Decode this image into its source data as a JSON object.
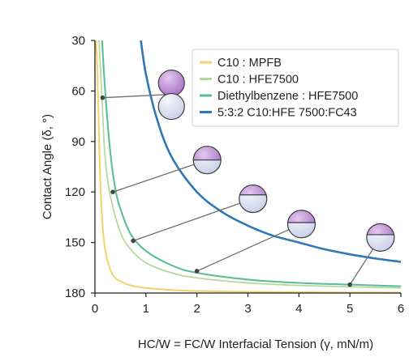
{
  "chart_data": {
    "type": "line",
    "xlabel": "HC/W = FC/W Interfacial Tension  (γ, mN/m)",
    "ylabel": "Contact Angle (δ, °)",
    "xlim": [
      0,
      6
    ],
    "ylim": [
      30,
      180
    ],
    "y_inverted": true,
    "x_ticks": [
      "0",
      "1",
      "2",
      "3",
      "4",
      "5",
      "6"
    ],
    "y_ticks": [
      "30",
      "60",
      "90",
      "120",
      "150",
      "180"
    ],
    "grid": false,
    "legend_position": "top-right",
    "series": [
      {
        "name": "C10 : MPFB",
        "color": "#f2d373",
        "x": [
          0.02,
          0.05,
          0.1,
          0.15,
          0.2,
          0.3,
          0.4,
          0.5,
          0.7,
          1.0,
          1.5,
          2.0,
          3.0,
          4.0,
          5.0,
          6.0
        ],
        "y": [
          30,
          50,
          110,
          140,
          154,
          166,
          171,
          173,
          175.5,
          177,
          178.2,
          178.8,
          179.3,
          179.5,
          179.7,
          179.8
        ]
      },
      {
        "name": "C10 : HFE7500",
        "color": "#b2d89c",
        "x": [
          0.08,
          0.15,
          0.2,
          0.3,
          0.5,
          0.7,
          1.0,
          1.5,
          2.0,
          3.0,
          4.0,
          5.0,
          6.0
        ],
        "y": [
          30,
          72,
          100,
          122,
          144,
          154,
          162,
          168,
          171,
          174,
          175.5,
          176.3,
          177
        ]
      },
      {
        "name": "Diethylbenzene : HFE7500",
        "color": "#5cbf94",
        "x": [
          0.14,
          0.2,
          0.3,
          0.4,
          0.5,
          0.7,
          1.0,
          1.5,
          2.0,
          3.0,
          4.0,
          5.0,
          6.0
        ],
        "y": [
          30,
          60,
          96,
          118,
          130,
          145,
          155,
          163.5,
          168,
          172,
          174,
          175,
          176
        ]
      },
      {
        "name": "5:3:2 C10:HFE 7500:FC43",
        "color": "#2e78b6",
        "x": [
          0.9,
          1.0,
          1.2,
          1.5,
          2.0,
          2.5,
          3.0,
          3.5,
          4.0,
          4.5,
          5.0,
          5.5,
          6.0
        ],
        "y": [
          30,
          50,
          75,
          99,
          120,
          132,
          140,
          146,
          150,
          154,
          157,
          159.5,
          161.5
        ]
      }
    ],
    "annotations": [
      {
        "x": 0.15,
        "y": 64,
        "droplet": [
          1.5,
          62
        ],
        "upper_fraction": 0.45
      },
      {
        "x": 0.35,
        "y": 120,
        "droplet": [
          2.2,
          101
        ],
        "upper_fraction": 0.5
      },
      {
        "x": 0.75,
        "y": 149,
        "droplet": [
          3.1,
          124
        ],
        "upper_fraction": 0.36
      },
      {
        "x": 2.0,
        "y": 167,
        "droplet": [
          4.05,
          139
        ],
        "upper_fraction": 0.45
      },
      {
        "x": 5.0,
        "y": 175,
        "droplet": [
          5.6,
          147
        ],
        "upper_fraction": 0.4
      }
    ]
  },
  "colors": {
    "droplet_top": "#a86fc6",
    "droplet_top_highlight": "#e2c8ef",
    "droplet_bottom": "#c5cde6",
    "droplet_bottom_highlight": "#f7f8fc",
    "droplet_outline": "#3a3a3a",
    "leader_line": "#6e6e6e",
    "axis": "#222222",
    "legend_border": "#d0d0d0"
  }
}
